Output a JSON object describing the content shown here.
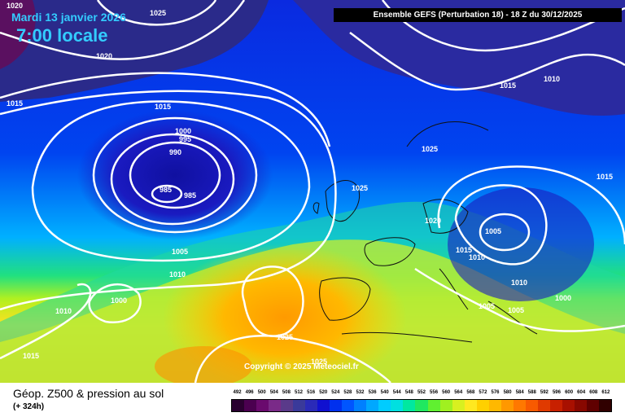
{
  "header": {
    "date": "Mardi 13 janvier 2026",
    "time": "7:00 locale",
    "run": "Ensemble GEFS  (Perturbation 18)  -  18 Z du 30/12/2025"
  },
  "copyright": "Copyright © 2025 Meteociel.fr",
  "footer": {
    "title": "Géop. Z500 & pression au sol",
    "lead": "(+ 324h)"
  },
  "scale": {
    "labels": [
      "492",
      "496",
      "500",
      "504",
      "508",
      "512",
      "516",
      "520",
      "524",
      "528",
      "532",
      "536",
      "540",
      "544",
      "548",
      "552",
      "556",
      "560",
      "564",
      "568",
      "572",
      "576",
      "580",
      "584",
      "588",
      "592",
      "596",
      "600",
      "604",
      "608",
      "612"
    ],
    "colors": [
      "#2a0030",
      "#4b0050",
      "#6a0a6e",
      "#7a2a88",
      "#5a3a8a",
      "#3a3a9a",
      "#2a2ab8",
      "#1010d0",
      "#0030ee",
      "#0055ff",
      "#0080ff",
      "#00a8ff",
      "#00ccff",
      "#00e0e0",
      "#00e8a0",
      "#20e860",
      "#60f030",
      "#a0f020",
      "#d8f020",
      "#ffe820",
      "#ffd000",
      "#ffb800",
      "#ff9800",
      "#ff7800",
      "#f85a00",
      "#e03a00",
      "#c82000",
      "#a81000",
      "#880800",
      "#600000",
      "#300000"
    ]
  },
  "isobars": [
    {
      "text": "1020"
    },
    {
      "text": "1025"
    },
    {
      "text": "1020"
    },
    {
      "text": "1015"
    },
    {
      "text": "1015"
    },
    {
      "text": "1000"
    },
    {
      "text": "995"
    },
    {
      "text": "990"
    },
    {
      "text": "985"
    },
    {
      "text": "985"
    },
    {
      "text": "1005"
    },
    {
      "text": "1010"
    },
    {
      "text": "1000"
    },
    {
      "text": "1010"
    },
    {
      "text": "1015"
    },
    {
      "text": "1025"
    },
    {
      "text": "1025"
    },
    {
      "text": "1025"
    },
    {
      "text": "1015"
    },
    {
      "text": "1010"
    },
    {
      "text": "1025"
    },
    {
      "text": "1020"
    },
    {
      "text": "1005"
    },
    {
      "text": "1015"
    },
    {
      "text": "1010"
    },
    {
      "text": "1010"
    },
    {
      "text": "1005"
    },
    {
      "text": "1005"
    },
    {
      "text": "1000"
    },
    {
      "text": "1015"
    }
  ]
}
